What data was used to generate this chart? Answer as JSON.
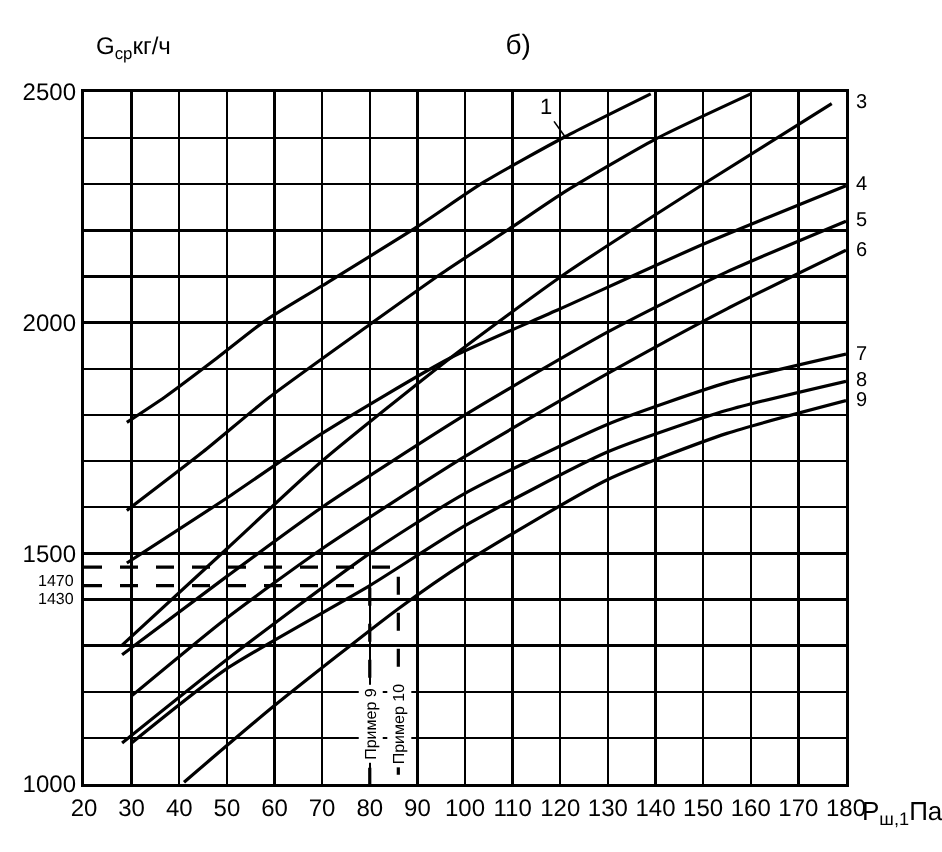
{
  "chart_data": {
    "type": "line",
    "title": "б)",
    "xlabel": "P$_{ш,1}$Па",
    "ylabel": "G$_{ср}$кг/ч",
    "xlim": [
      20,
      180
    ],
    "xticks": [
      20,
      30,
      40,
      50,
      60,
      70,
      80,
      90,
      100,
      110,
      120,
      130,
      140,
      150,
      160,
      170,
      180
    ],
    "ylim": [
      1000,
      2500
    ],
    "yticks": [
      1000,
      {
        "value": 1100,
        "label": null
      },
      {
        "value": 1200,
        "label": null
      },
      {
        "value": 1300,
        "label": null
      },
      {
        "value": 1400,
        "label": null
      },
      1500,
      {
        "value": 1600,
        "label": null
      },
      {
        "value": 1700,
        "label": null
      },
      {
        "value": 1800,
        "label": null
      },
      {
        "value": 1900,
        "label": null
      },
      2000,
      {
        "value": 2100,
        "label": null
      },
      {
        "value": 2200,
        "label": null
      },
      {
        "value": 2300,
        "label": null
      },
      {
        "value": 2400,
        "label": null
      },
      2500
    ],
    "grid": true,
    "legend": false,
    "marker": "none",
    "series": [
      {
        "name": "1",
        "color": "#000000",
        "x": [
          29,
          37,
          48,
          58,
          70,
          90,
          104,
          121,
          139
        ],
        "values": [
          1784,
          1839,
          1924,
          2004,
          2080,
          2208,
          2305,
          2403,
          2496
        ]
      },
      {
        "color": "#000000",
        "x": [
          29,
          45,
          59,
          80,
          95,
          110,
          121,
          140,
          160
        ],
        "values": [
          1593,
          1720,
          1839,
          1996,
          2106,
          2208,
          2284,
          2398,
          2496
        ]
      },
      {
        "name": "3",
        "color": "#000000",
        "x": [
          28,
          50,
          70,
          97,
          121,
          150,
          177
        ],
        "values": [
          1301,
          1510,
          1700,
          1924,
          2106,
          2300,
          2475
        ]
      },
      {
        "name": "4",
        "color": "#000000",
        "x": [
          29,
          50,
          70,
          97,
          120,
          150,
          180
        ],
        "values": [
          1479,
          1620,
          1760,
          1924,
          2030,
          2170,
          2297
        ]
      },
      {
        "name": "5",
        "color": "#000000",
        "x": [
          28,
          50,
          70,
          100,
          130,
          155,
          180
        ],
        "values": [
          1280,
          1450,
          1600,
          1800,
          1980,
          2110,
          2220
        ]
      },
      {
        "name": "6",
        "color": "#000000",
        "x": [
          30,
          50,
          70,
          100,
          130,
          155,
          180
        ],
        "values": [
          1191,
          1360,
          1510,
          1710,
          1890,
          2030,
          2157
        ]
      },
      {
        "name": "7",
        "color": "#000000",
        "x": [
          28,
          50,
          80,
          100,
          130,
          155,
          180
        ],
        "values": [
          1089,
          1270,
          1500,
          1630,
          1780,
          1870,
          1932
        ]
      },
      {
        "name": "8",
        "color": "#000000",
        "x": [
          30,
          50,
          80,
          100,
          130,
          155,
          180
        ],
        "values": [
          1089,
          1250,
          1430,
          1560,
          1720,
          1810,
          1873
        ]
      },
      {
        "name": "9",
        "color": "#000000",
        "x": [
          41,
          60,
          86,
          100,
          130,
          155,
          180
        ],
        "values": [
          1004,
          1170,
          1380,
          1480,
          1660,
          1760,
          1831
        ]
      },
      {
        "color": "#000000",
        "line_style": "dashed",
        "x": [
          20,
          80,
          80
        ],
        "values": [
          1430,
          1430,
          1000
        ]
      },
      {
        "color": "#000000",
        "line_style": "dashed",
        "x": [
          20,
          86,
          86
        ],
        "values": [
          1470,
          1470,
          1000
        ]
      }
    ],
    "annotations": [
      {
        "text": "1470",
        "x": 20,
        "y": 1470
      },
      {
        "text": "1430",
        "x": 20,
        "y": 1430
      },
      {
        "text": "Пример 9",
        "x": 80,
        "y": 1130
      },
      {
        "text": "Пример 10",
        "x": 86,
        "y": 1130
      }
    ]
  }
}
